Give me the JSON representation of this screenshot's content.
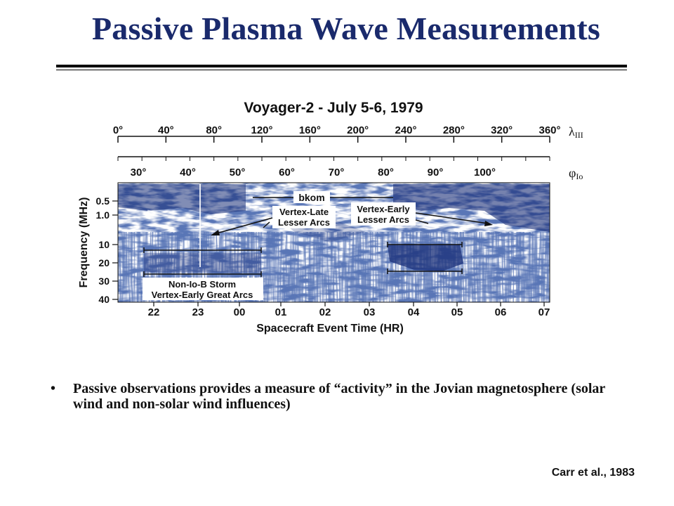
{
  "slide": {
    "title": "Passive Plasma Wave Measurements",
    "bullet": "Passive observations provides a measure of “activity” in the Jovian magnetosphere (solar wind and non-solar wind influences)",
    "citation": "Carr et al., 1983"
  },
  "figure": {
    "title": "Voyager-2 - July 5-6, 1979",
    "lambda_label": "λ",
    "lambda_sub": "III",
    "phi_label": "φ",
    "phi_sub": "Io",
    "lambda_ticks": [
      "0°",
      "40°",
      "80°",
      "120°",
      "160°",
      "200°",
      "240°",
      "280°",
      "320°",
      "360°"
    ],
    "phi_ticks": [
      "30°",
      "40°",
      "50°",
      "60°",
      "70°",
      "80°",
      "90°",
      "100°"
    ],
    "freq_ticks": [
      "0.5",
      "1.0",
      "10",
      "20",
      "30",
      "40"
    ],
    "time_ticks": [
      "22",
      "23",
      "00",
      "01",
      "02",
      "03",
      "04",
      "05",
      "06",
      "07"
    ],
    "ylabel": "Frequency (MHz)",
    "xlabel": "Spacecraft Event Time (HR)",
    "annotations": {
      "bkom": "bkom",
      "vertex_late_1": "Vertex-Late",
      "vertex_late_2": "Lesser Arcs",
      "vertex_early_1": "Vertex-Early",
      "vertex_early_2": "Lesser Arcs",
      "nonio_1": "Non-Io-B Storm",
      "nonio_2": "Vertex-Early Great Arcs"
    },
    "colors": {
      "ink": "#1a2f78",
      "paper": "#ffffff",
      "title": "#1a2a6c"
    }
  }
}
